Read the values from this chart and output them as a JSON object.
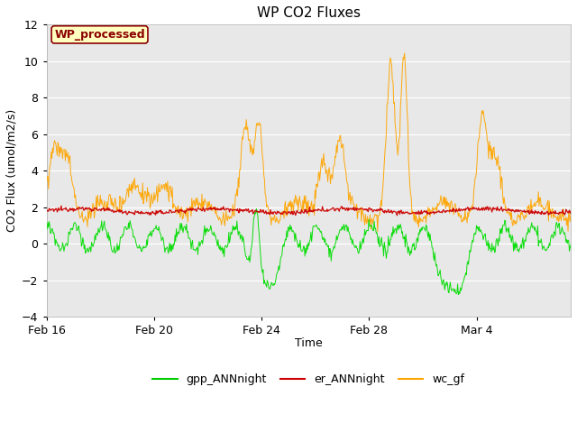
{
  "title": "WP CO2 Fluxes",
  "xlabel": "Time",
  "ylabel": "CO2 Flux (umol/m2/s)",
  "ylim": [
    -4,
    12
  ],
  "yticks": [
    -4,
    -2,
    0,
    2,
    4,
    6,
    8,
    10,
    12
  ],
  "fig_bg_color": "#ffffff",
  "plot_bg_color": "#e8e8e8",
  "grid_color": "white",
  "annotation_text": "WP_processed",
  "annotation_color": "#8b0000",
  "annotation_bg": "#ffffc0",
  "annotation_border": "#8b0000",
  "legend_items": [
    "gpp_ANNnight",
    "er_ANNnight",
    "wc_gf"
  ],
  "legend_colors": [
    "#00cc00",
    "#cc0000",
    "#ffa500"
  ],
  "line_colors": {
    "gpp": "#00dd00",
    "er": "#cc0000",
    "wc": "#ffa500"
  },
  "xtick_labels": [
    "Feb 16",
    "Feb 20",
    "Feb 24",
    "Feb 28",
    "Mar 4"
  ],
  "xtick_positions": [
    0,
    4,
    8,
    12,
    16
  ]
}
